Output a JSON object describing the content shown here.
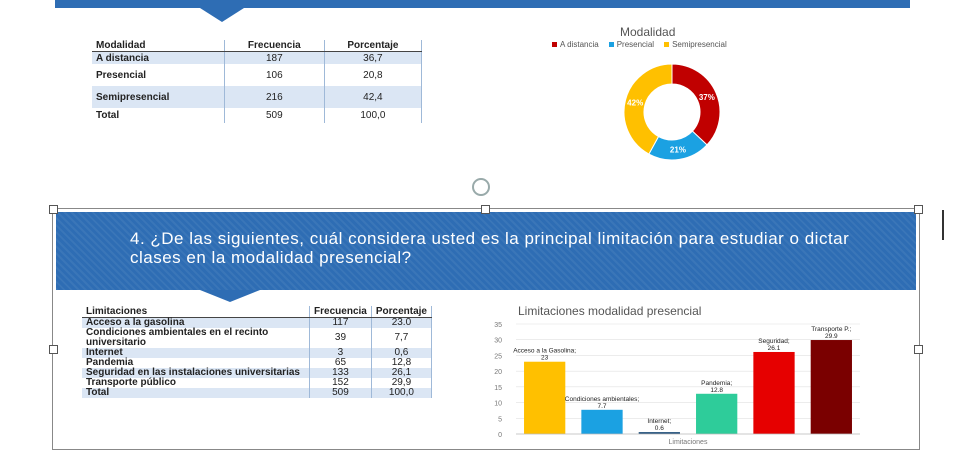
{
  "slide1": {
    "table": {
      "headers": [
        "Modalidad",
        "Frecuencia",
        "Porcentaje"
      ],
      "rows": [
        [
          "A distancia",
          "187",
          "36,7"
        ],
        [
          "Presencial",
          "106",
          "20,8"
        ],
        [
          "Semipresencial",
          "216",
          "42,4"
        ],
        [
          "Total",
          "509",
          "100,0"
        ]
      ]
    },
    "chart_data": {
      "type": "pie",
      "title": "Modalidad",
      "labels": [
        "A distancia",
        "Presencial",
        "Semipresencial"
      ],
      "values": [
        37,
        21,
        42
      ],
      "data_labels": [
        "37%",
        "21%",
        "42%"
      ],
      "colors": [
        "#c00000",
        "#1ba1e2",
        "#ffc000"
      ],
      "legend_position": "top"
    }
  },
  "slide2": {
    "question": "4. ¿De las siguientes, cuál considera usted es la principal limitación para estudiar o dictar clases en la modalidad presencial?",
    "table": {
      "headers": [
        "Limitaciones",
        "Frecuencia",
        "Porcentaje"
      ],
      "rows": [
        [
          "Acceso a la gasolina",
          "117",
          "23.0"
        ],
        [
          "Condiciones ambientales en el recinto universitario",
          "39",
          "7,7"
        ],
        [
          "Internet",
          "3",
          "0,6"
        ],
        [
          "Pandemia",
          "65",
          "12,8"
        ],
        [
          "Seguridad en las instalaciones universitarias",
          "133",
          "26,1"
        ],
        [
          "Transporte público",
          "152",
          "29,9"
        ],
        [
          "Total",
          "509",
          "100,0"
        ]
      ]
    },
    "chart_data": {
      "type": "bar",
      "title": "Limitaciones modalidad presencial",
      "xlabel": "Limitaciones",
      "ylabel": "",
      "ylim": [
        0,
        35
      ],
      "yticks": [
        0,
        5,
        10,
        15,
        20,
        25,
        30,
        35
      ],
      "grid": true,
      "categories": [
        "Acceso a la Gasolina",
        "Condiciones ambientales",
        "Internet",
        "Pandemia",
        "Seguridad",
        "Transporte P."
      ],
      "values": [
        23,
        7.7,
        0.6,
        12.8,
        26.1,
        29.9
      ],
      "data_labels": [
        "Acceso a la Gasolina; 23",
        "Condiciones ambientales; 7.7",
        "Internet; 0.6",
        "Pandemia; 12.8",
        "Seguridad; 26.1",
        "Transporte P.; 29.9"
      ],
      "colors": [
        "#ffc000",
        "#1ba1e2",
        "#1f4e79",
        "#2ecc9a",
        "#e60000",
        "#7a0000"
      ]
    }
  }
}
